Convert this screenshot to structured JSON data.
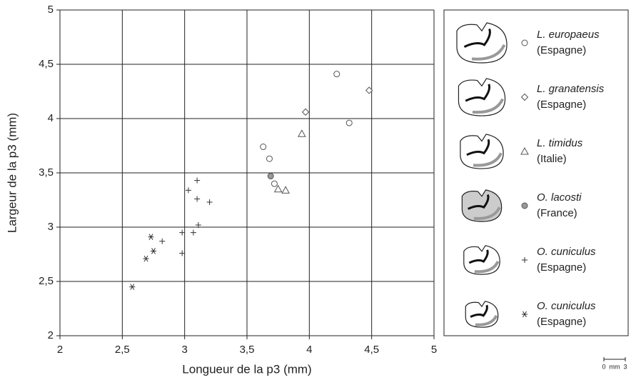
{
  "chart_data": {
    "type": "scatter",
    "x_label": "Longueur de la p3 (mm)",
    "y_label": "Largeur de la p3 (mm)",
    "xlim": [
      2,
      5
    ],
    "ylim": [
      2,
      5
    ],
    "xticks": [
      2,
      {
        "value": 2.5,
        "label": "2,5"
      },
      3,
      {
        "value": 3.5,
        "label": "3,5"
      },
      4,
      {
        "value": 4.5,
        "label": "4,5"
      },
      5
    ],
    "yticks": [
      2,
      {
        "value": 2.5,
        "label": "2,5"
      },
      3,
      {
        "value": 3.5,
        "label": "3,5"
      },
      4,
      {
        "value": 4.5,
        "label": "4,5"
      },
      5
    ],
    "grid": true,
    "legend": "right",
    "series": [
      {
        "name": "L. europaeus",
        "locality": "(Espagne)",
        "marker": "circle",
        "color": "#555555",
        "x": [
          4.22,
          4.32,
          3.63,
          3.68,
          3.72
        ],
        "values": [
          4.41,
          3.96,
          3.74,
          3.63,
          3.4
        ]
      },
      {
        "name": "L. granatensis",
        "locality": "(Espagne)",
        "marker": "diamond",
        "color": "#555555",
        "x": [
          4.48,
          3.97
        ],
        "values": [
          4.26,
          4.06
        ]
      },
      {
        "name": "L. timidus",
        "locality": "(Italie)",
        "marker": "triangle",
        "color": "#555555",
        "x": [
          3.94,
          3.75,
          3.81
        ],
        "values": [
          3.86,
          3.35,
          3.34
        ]
      },
      {
        "name": "O. lacosti",
        "locality": "(France)",
        "marker": "circle-filled",
        "color": "#555555",
        "x": [
          3.69
        ],
        "values": [
          3.47
        ]
      },
      {
        "name": "O. cuniculus",
        "locality": "(Espagne)",
        "marker": "plus",
        "color": "#333333",
        "x": [
          3.1,
          3.03,
          3.1,
          3.2,
          3.11,
          2.98,
          3.07,
          2.82,
          2.98
        ],
        "values": [
          3.43,
          3.34,
          3.26,
          3.23,
          3.02,
          2.95,
          2.95,
          2.87,
          2.76
        ]
      },
      {
        "name": "O. cuniculus",
        "locality": "(Espagne)",
        "marker": "asterisk",
        "color": "#333333",
        "x": [
          2.73,
          2.75,
          2.69,
          2.58
        ],
        "values": [
          2.91,
          2.78,
          2.71,
          2.45
        ]
      }
    ],
    "scale_bar": {
      "start": 0,
      "unit": "mm",
      "end": 3
    }
  }
}
